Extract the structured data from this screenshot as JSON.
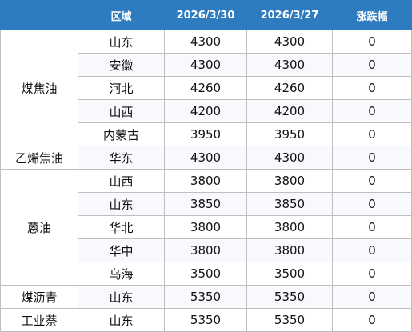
{
  "table": {
    "headers": [
      "",
      "区域",
      "2026/3/30",
      "2026/3/27",
      "涨跌幅"
    ],
    "groups": [
      {
        "name": "煤焦油",
        "rows": [
          {
            "region": "山东",
            "d1": "4300",
            "d2": "4300",
            "chg": "0"
          },
          {
            "region": "安徽",
            "d1": "4300",
            "d2": "4300",
            "chg": "0"
          },
          {
            "region": "河北",
            "d1": "4260",
            "d2": "4260",
            "chg": "0"
          },
          {
            "region": "山西",
            "d1": "4200",
            "d2": "4200",
            "chg": "0"
          },
          {
            "region": "内蒙古",
            "d1": "3950",
            "d2": "3950",
            "chg": "0"
          }
        ]
      },
      {
        "name": "乙烯焦油",
        "rows": [
          {
            "region": "华东",
            "d1": "4300",
            "d2": "4300",
            "chg": "0"
          }
        ]
      },
      {
        "name": "蒽油",
        "rows": [
          {
            "region": "山西",
            "d1": "3800",
            "d2": "3800",
            "chg": "0"
          },
          {
            "region": "山东",
            "d1": "3850",
            "d2": "3850",
            "chg": "0"
          },
          {
            "region": "华北",
            "d1": "3800",
            "d2": "3800",
            "chg": "0"
          },
          {
            "region": "华中",
            "d1": "3800",
            "d2": "3800",
            "chg": "0"
          },
          {
            "region": "乌海",
            "d1": "3500",
            "d2": "3500",
            "chg": "0"
          }
        ]
      },
      {
        "name": "煤沥青",
        "rows": [
          {
            "region": "山东",
            "d1": "5350",
            "d2": "5350",
            "chg": "0"
          }
        ]
      },
      {
        "name": "工业萘",
        "rows": [
          {
            "region": "山东",
            "d1": "5350",
            "d2": "5350",
            "chg": "0"
          }
        ]
      }
    ]
  }
}
